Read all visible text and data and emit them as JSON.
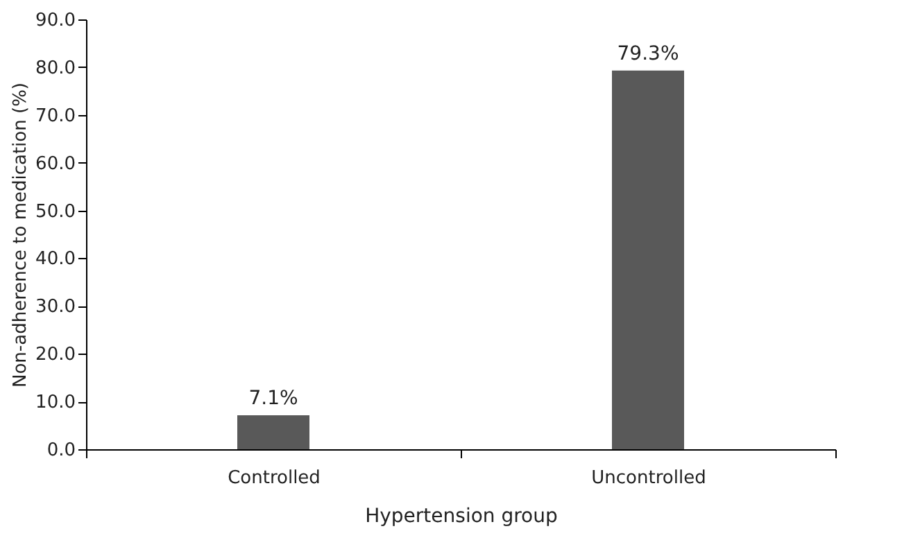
{
  "chart_data": {
    "type": "bar",
    "xlabel": "Hypertension group",
    "ylabel": "Non-adherence to medication (%)",
    "categories": [
      "Controlled",
      "Uncontrolled"
    ],
    "values": [
      7.1,
      79.3
    ],
    "color": "#595959",
    "value_labels": [
      "7.1%",
      "79.3%"
    ],
    "ylim": [
      0,
      90
    ],
    "yticks": [
      {
        "value": 0,
        "label": "0.0"
      },
      {
        "value": 10,
        "label": "10.0"
      },
      {
        "value": 20,
        "label": "20.0"
      },
      {
        "value": 30,
        "label": "30.0"
      },
      {
        "value": 40,
        "label": "40.0"
      },
      {
        "value": 50,
        "label": "50.0"
      },
      {
        "value": 60,
        "label": "60.0"
      },
      {
        "value": 70,
        "label": "70.0"
      },
      {
        "value": 80,
        "label": "80.0"
      },
      {
        "value": 90,
        "label": "90.0"
      }
    ],
    "grid": false
  }
}
